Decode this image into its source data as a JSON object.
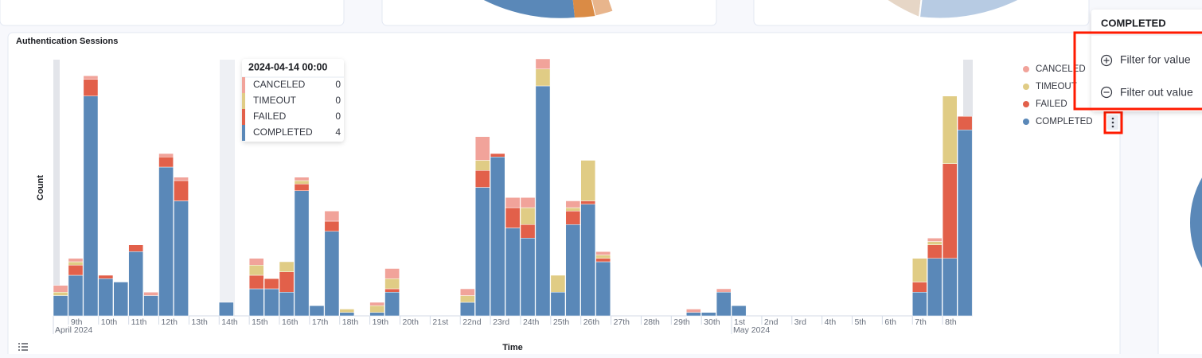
{
  "panel_title": "Authentication Sessions",
  "popover": {
    "actions": [
      "Filter for value",
      "Filter out value"
    ]
  },
  "chart_data": {
    "type": "bar",
    "stacked": true,
    "y_label": "Count",
    "x_label": "Time",
    "month_labels": [
      "April 2024",
      "May 2024"
    ],
    "tooltip_title": "2024-04-14 00:00",
    "ylim": [
      0,
      80
    ],
    "categories": [
      null,
      "9th",
      null,
      "10th",
      null,
      "11th",
      null,
      "12th",
      null,
      "13th",
      null,
      "14th",
      null,
      "15th",
      null,
      "16th",
      null,
      "17th",
      null,
      "18th",
      null,
      "19th",
      null,
      "20th",
      null,
      "21st",
      null,
      "22nd",
      null,
      "23rd",
      null,
      "24th",
      null,
      "25th",
      null,
      "26th",
      null,
      "27th",
      null,
      "28th",
      null,
      "29th",
      null,
      "30th",
      null,
      "1st",
      null,
      "2nd",
      null,
      "3rd",
      null,
      "4th",
      null,
      "5th",
      null,
      "6th",
      null,
      "7th",
      null,
      "8th",
      null
    ],
    "series": [
      {
        "name": "CANCELED",
        "color": "#f1a39a",
        "values": [
          2,
          1,
          1,
          0,
          0,
          0,
          1,
          1,
          1,
          0,
          0,
          0,
          0,
          2,
          0,
          0,
          1,
          0,
          3,
          0,
          0,
          1,
          3,
          0,
          0,
          0,
          0,
          2,
          7,
          0,
          3,
          3,
          3,
          0,
          2,
          0,
          1,
          0,
          0,
          0,
          0,
          0,
          1,
          0,
          1,
          0,
          0,
          0,
          0,
          0,
          0,
          0,
          0,
          0,
          0,
          0,
          0,
          0,
          1,
          0,
          0
        ]
      },
      {
        "name": "TIMEOUT",
        "color": "#e0cc85",
        "values": [
          1,
          1,
          0,
          0,
          0,
          0,
          0,
          0,
          0,
          0,
          0,
          0,
          0,
          3,
          0,
          3,
          1,
          0,
          0,
          1,
          0,
          2,
          3,
          0,
          0,
          0,
          0,
          2,
          3,
          0,
          0,
          5,
          5,
          5,
          1,
          12,
          1,
          0,
          0,
          0,
          0,
          0,
          0,
          0,
          0,
          0,
          0,
          0,
          0,
          0,
          0,
          0,
          0,
          0,
          0,
          0,
          0,
          7,
          1,
          20,
          0
        ]
      },
      {
        "name": "FAILED",
        "color": "#e2604a",
        "values": [
          0,
          3,
          5,
          1,
          0,
          2,
          0,
          3,
          6,
          0,
          0,
          0,
          0,
          4,
          3,
          6,
          2,
          0,
          3,
          0,
          0,
          0,
          1,
          0,
          0,
          0,
          0,
          0,
          5,
          1,
          6,
          4,
          0,
          0,
          4,
          1,
          1,
          0,
          0,
          0,
          0,
          0,
          0,
          0,
          0,
          0,
          0,
          0,
          0,
          0,
          0,
          0,
          0,
          0,
          0,
          0,
          0,
          3,
          4,
          28,
          4
        ]
      },
      {
        "name": "COMPLETED",
        "color": "#5a88b8",
        "values": [
          6,
          12,
          65,
          11,
          10,
          19,
          6,
          44,
          34,
          0,
          0,
          4,
          0,
          8,
          8,
          7,
          37,
          3,
          25,
          1,
          0,
          1,
          7,
          0,
          0,
          0,
          0,
          4,
          38,
          47,
          26,
          23,
          68,
          7,
          27,
          33,
          16,
          0,
          0,
          0,
          0,
          0,
          1,
          1,
          7,
          3,
          0,
          0,
          0,
          0,
          0,
          0,
          0,
          0,
          0,
          0,
          0,
          7,
          17,
          17,
          55
        ]
      }
    ],
    "legend": "right"
  }
}
